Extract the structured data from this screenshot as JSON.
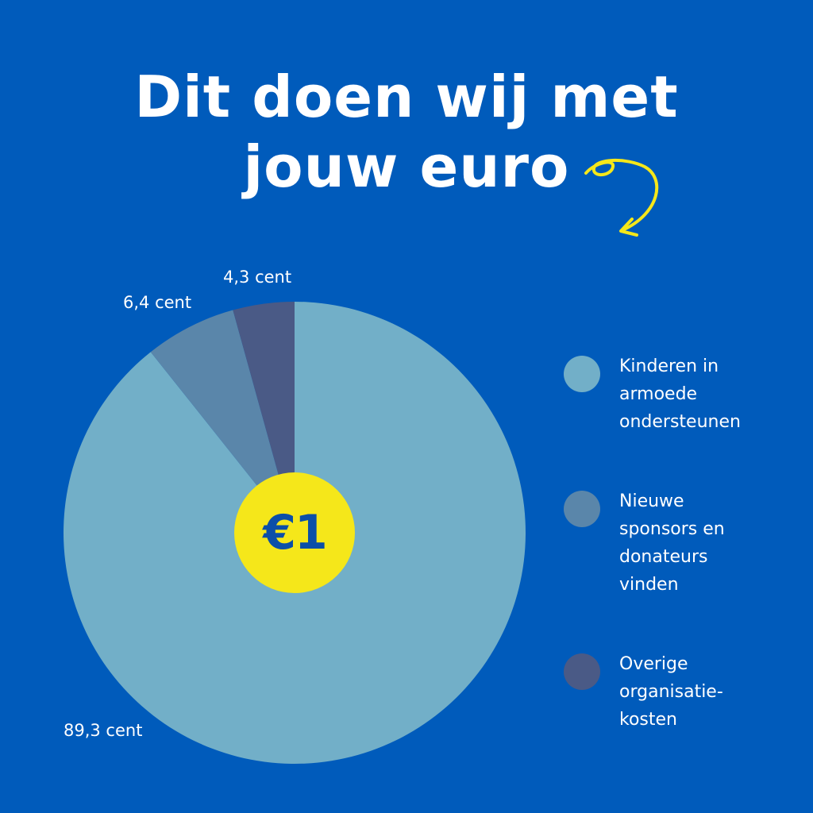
{
  "title": {
    "line1": "Dit doen wij met",
    "line2": "jouw euro"
  },
  "center_label": "€1",
  "colors": {
    "background": "#005bbb",
    "slice_1": "#72afc8",
    "slice_2": "#5a86aa",
    "slice_3": "#4a5a86",
    "badge": "#f5e71a",
    "arrow": "#f5e71a"
  },
  "icons": {
    "arrow": "curly-arrow-icon"
  },
  "chart_data": {
    "type": "pie",
    "title": "Dit doen wij met jouw euro",
    "unit": "cent",
    "start_angle": "12 o'clock",
    "direction": "counter-clockwise",
    "slices": [
      {
        "label": "Kinderen in armoede ondersteunen",
        "value": 89.3,
        "value_label": "89,3 cent"
      },
      {
        "label": "Nieuwe sponsors en donateurs vinden",
        "value": 6.4,
        "value_label": "6,4 cent"
      },
      {
        "label": "Overige organisatie-kosten",
        "value": 4.3,
        "value_label": "4,3 cent"
      }
    ],
    "legend": {
      "placement": "right",
      "entries": [
        "Kinderen in\narmoede\nondersteunen",
        "Nieuwe\nsponsors en\ndonateurs\nvinden",
        "Overige\norganisatie-\nkosten"
      ]
    }
  }
}
